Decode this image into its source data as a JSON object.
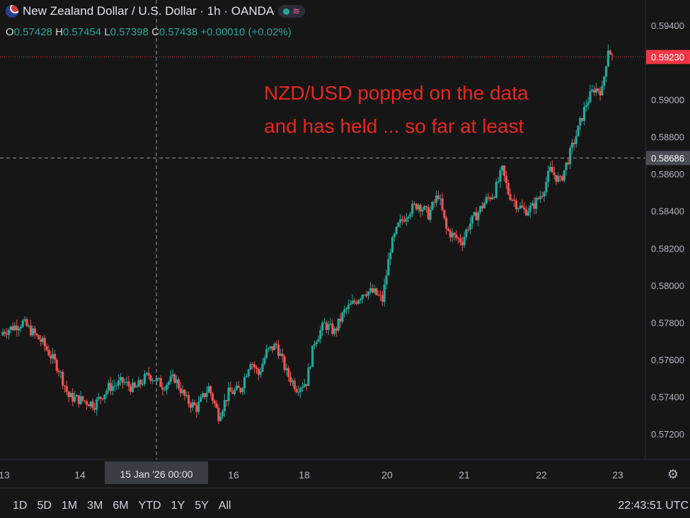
{
  "header": {
    "title": "New Zealand Dollar / U.S. Dollar · 1h · OANDA",
    "ohlc": [
      {
        "key": "O",
        "value": "0.57428"
      },
      {
        "key": "H",
        "value": "0.57454"
      },
      {
        "key": "L",
        "value": "0.57398"
      },
      {
        "key": "C",
        "value": "0.57438"
      }
    ],
    "change": "+0.00010 (+0.02%)"
  },
  "annotation": "NZD/USD popped on the data and has held ... so far at least",
  "bottom": {
    "ranges": [
      "1D",
      "5D",
      "1M",
      "3M",
      "6M",
      "YTD",
      "1Y",
      "5Y",
      "All"
    ],
    "clock": "22:43:51 UTC"
  },
  "colors": {
    "up": "#26a69a",
    "down": "#ef5350",
    "background": "#161616",
    "last_price": "#f23645",
    "annotation": "#e8261f"
  },
  "chart_data": {
    "type": "candlestick",
    "symbol": "NZD/USD",
    "interval": "1h",
    "ylim": [
      0.5712,
      0.594
    ],
    "y_ticks": [
      "0.57200",
      "0.57400",
      "0.57600",
      "0.57800",
      "0.58000",
      "0.58200",
      "0.58400",
      "0.58600",
      "0.58800",
      "0.59000",
      "0.59400"
    ],
    "x_ticks": [
      "13",
      "14",
      "16",
      "18",
      "20",
      "21",
      "22",
      "23"
    ],
    "crosshair": {
      "time_label": "15 Jan '26   00:00",
      "price_label": "0.58686",
      "price": 0.58686
    },
    "last_price": {
      "label": "0.59230",
      "value": 0.5923
    },
    "close_path": [
      [
        0,
        0.5775
      ],
      [
        10,
        0.578
      ],
      [
        20,
        0.5769
      ],
      [
        28,
        0.5755
      ],
      [
        33,
        0.574
      ],
      [
        40,
        0.5738
      ],
      [
        46,
        0.5736
      ],
      [
        53,
        0.5745
      ],
      [
        60,
        0.5748
      ],
      [
        66,
        0.5744
      ],
      [
        73,
        0.5752
      ],
      [
        80,
        0.5746
      ],
      [
        86,
        0.575
      ],
      [
        92,
        0.5738
      ],
      [
        97,
        0.5734
      ],
      [
        103,
        0.5745
      ],
      [
        108,
        0.573
      ],
      [
        113,
        0.5742
      ],
      [
        119,
        0.5744
      ],
      [
        124,
        0.576
      ],
      [
        128,
        0.5752
      ],
      [
        132,
        0.5764
      ],
      [
        137,
        0.5768
      ],
      [
        142,
        0.5753
      ],
      [
        147,
        0.5745
      ],
      [
        152,
        0.5748
      ],
      [
        156,
        0.577
      ],
      [
        161,
        0.5779
      ],
      [
        166,
        0.5775
      ],
      [
        171,
        0.5786
      ],
      [
        176,
        0.5791
      ],
      [
        181,
        0.5797
      ],
      [
        186,
        0.5796
      ],
      [
        190,
        0.5792
      ],
      [
        194,
        0.582
      ],
      [
        198,
        0.5832
      ],
      [
        203,
        0.584
      ],
      [
        208,
        0.5844
      ],
      [
        213,
        0.5838
      ],
      [
        218,
        0.5849
      ],
      [
        222,
        0.583
      ],
      [
        226,
        0.5826
      ],
      [
        230,
        0.5824
      ],
      [
        233,
        0.5832
      ],
      [
        237,
        0.5838
      ],
      [
        242,
        0.5846
      ],
      [
        246,
        0.585
      ],
      [
        250,
        0.5862
      ],
      [
        253,
        0.585
      ],
      [
        257,
        0.5844
      ],
      [
        261,
        0.584
      ],
      [
        265,
        0.5842
      ],
      [
        270,
        0.585
      ],
      [
        274,
        0.5862
      ],
      [
        279,
        0.5856
      ],
      [
        283,
        0.5868
      ],
      [
        288,
        0.5884
      ],
      [
        292,
        0.5898
      ],
      [
        296,
        0.5906
      ],
      [
        300,
        0.5905
      ],
      [
        303,
        0.5928
      ],
      [
        305,
        0.5923
      ]
    ]
  }
}
